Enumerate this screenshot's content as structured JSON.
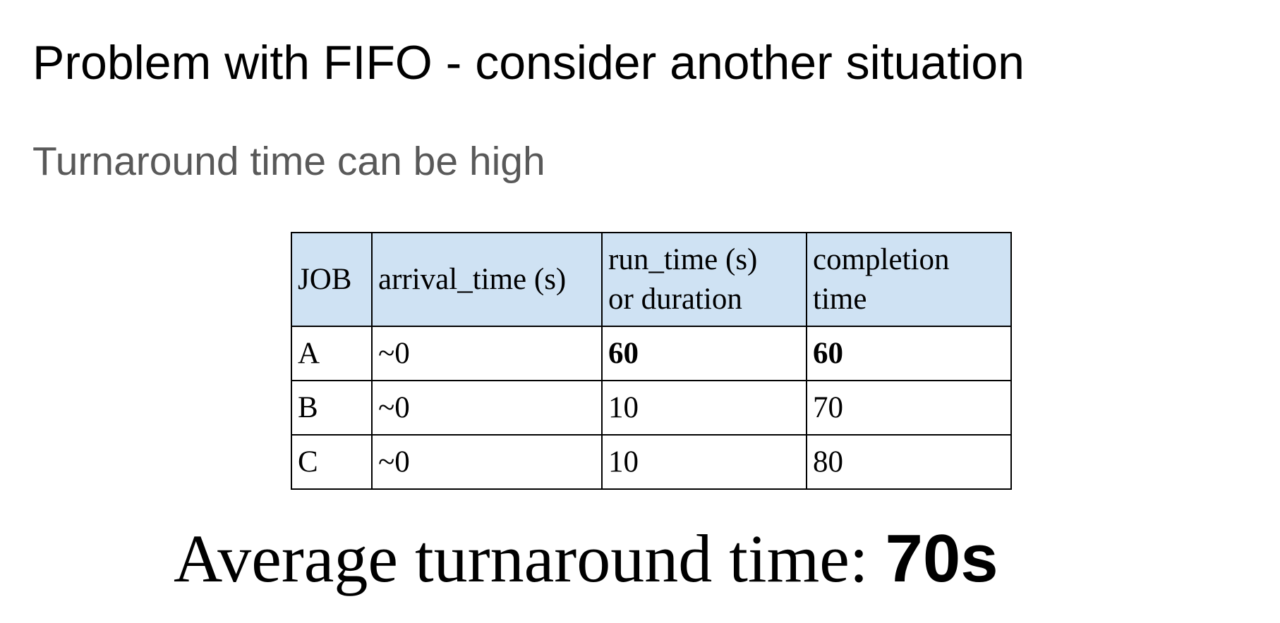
{
  "title": "Problem with FIFO - consider another situation",
  "subtitle": "Turnaround time can be high",
  "table": {
    "headers": {
      "job": "JOB",
      "arrival": "arrival_time (s)",
      "run_line1": "run_time (s)",
      "run_line2": "or duration",
      "completion_line1": "completion",
      "completion_line2": "time"
    },
    "rows": [
      {
        "job": "A",
        "arrival": "~0",
        "run": "60",
        "completion": "60"
      },
      {
        "job": "B",
        "arrival": "~0",
        "run": "10",
        "completion": "70"
      },
      {
        "job": "C",
        "arrival": "~0",
        "run": "10",
        "completion": "80"
      }
    ]
  },
  "summary": {
    "label": "Average turnaround time: ",
    "value": "70s"
  }
}
